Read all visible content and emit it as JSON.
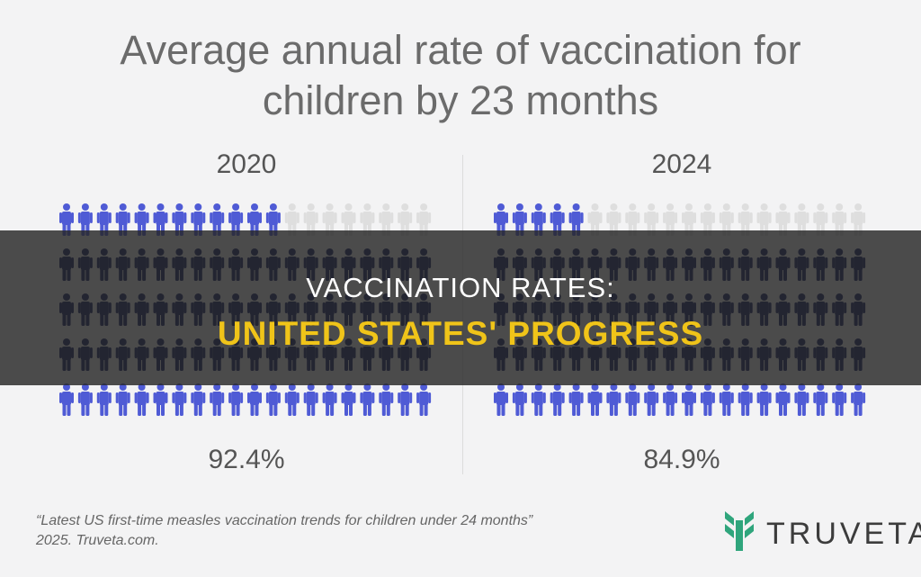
{
  "title_line1": "Average annual rate of vaccination for",
  "title_line2": "children by 23 months",
  "banner": {
    "line1": "VACCINATION RATES:",
    "line2": "UNITED STATES' PROGRESS"
  },
  "source": {
    "line1": "“Latest US first-time measles vaccination trends for children under 24 months”",
    "line2": "2025. Truveta.com."
  },
  "logo_text": "TRUVETA",
  "colors": {
    "vaccinated_light": "#4f5bd5",
    "vaccinated_dark": "#1a2466",
    "unvaccinated": "#dedede",
    "banner_text": "#ffffff",
    "banner_highlight": "#f0c419",
    "logo_green": "#2fa57c"
  },
  "chart_data": {
    "type": "pictogram",
    "icons_per_row": 20,
    "rows": 5,
    "total_icons": 100,
    "panels": [
      {
        "year": "2020",
        "value": 92.4,
        "label": "92.4%",
        "unvaccinated_icons": 8
      },
      {
        "year": "2024",
        "value": 84.9,
        "label": "84.9%",
        "unvaccinated_icons": 15
      }
    ]
  }
}
